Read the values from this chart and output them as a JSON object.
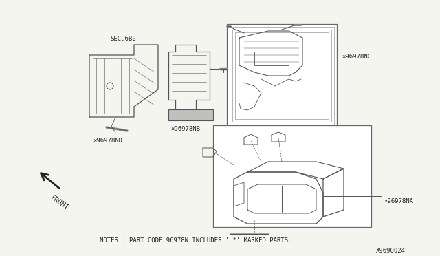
{
  "bg_color": "#f5f5f0",
  "line_color": "#555555",
  "text_color": "#222222",
  "note_text": "NOTES : PART CODE 96978N INCLUDES ' *' MARKED PARTS.",
  "diagram_id": "X9690024",
  "labels": {
    "sec": "SEC.6B0",
    "part_nb": "×96978NB",
    "part_nd": "×96978ND",
    "part_nc": "×96978NC",
    "part_na": "×96978NA",
    "front": "FRONT"
  },
  "fig_width": 6.4,
  "fig_height": 3.72,
  "dpi": 100
}
